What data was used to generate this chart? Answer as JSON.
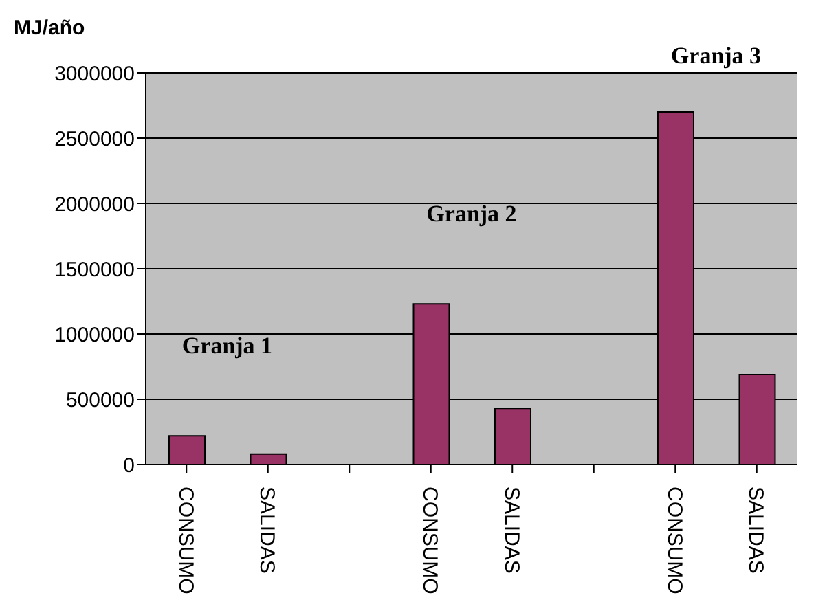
{
  "chart_data": {
    "type": "bar",
    "ylabel": "MJ/año",
    "categories": [
      "CONSUMO",
      "SALIDAS",
      null,
      "CONSUMO",
      "SALIDAS",
      null,
      "CONSUMO",
      "SALIDAS"
    ],
    "values": [
      220000,
      80000,
      null,
      1230000,
      430000,
      null,
      2700000,
      690000
    ],
    "color": "#993366",
    "ylim": [
      0,
      3000000
    ],
    "yticks": [
      0,
      500000,
      1000000,
      1500000,
      2000000,
      2500000,
      3000000
    ],
    "grid": "y",
    "annotations": [
      "Granja 1",
      "Granja 2",
      "Granja 3"
    ]
  }
}
